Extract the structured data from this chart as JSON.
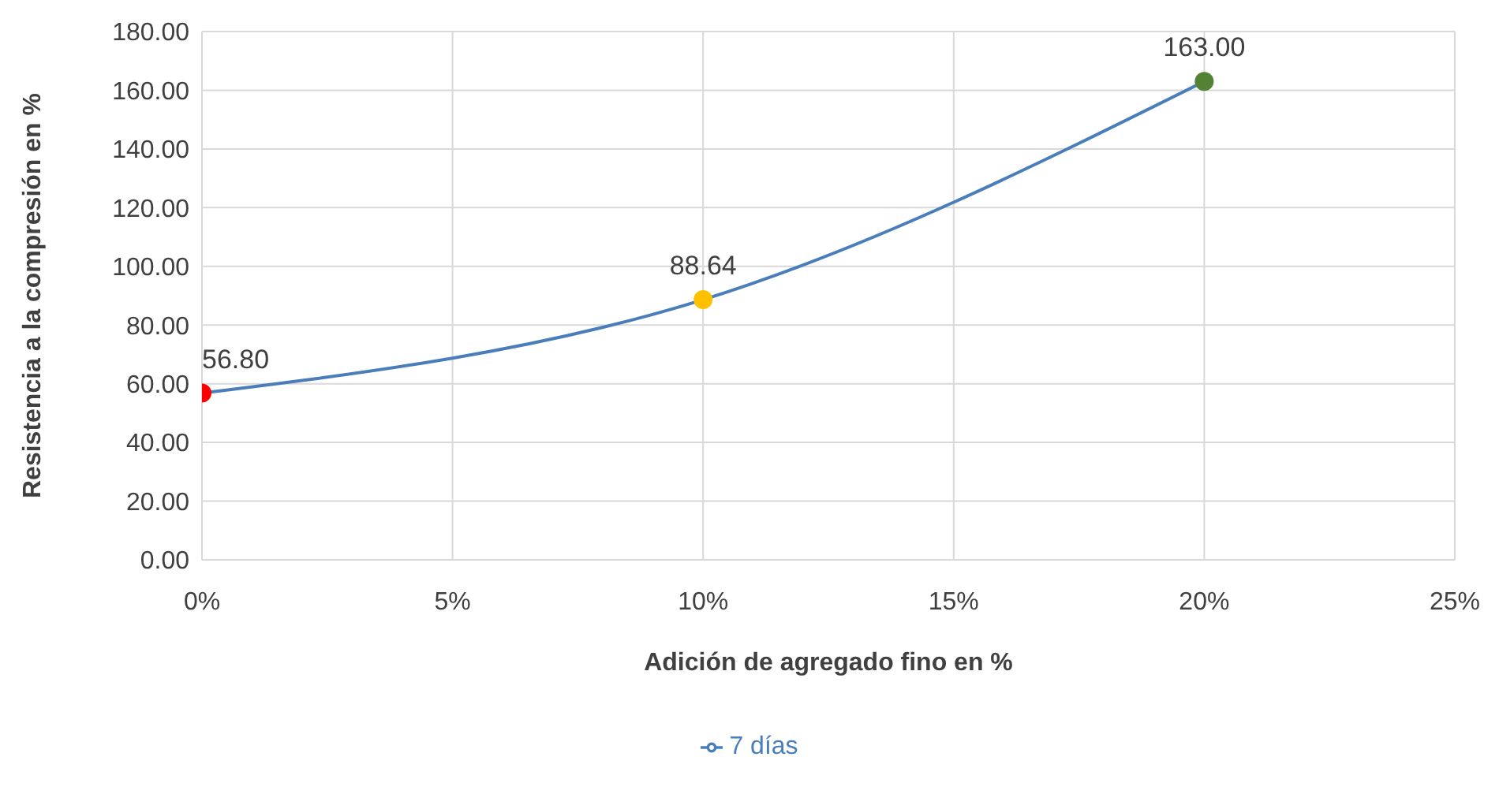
{
  "chart_data": {
    "type": "line",
    "xlabel": "Adición de agregado fino en %",
    "ylabel": "Resistencia a la compresión en %",
    "x": [
      0,
      10,
      20
    ],
    "series": [
      {
        "name": "7 días",
        "color": "#4a7ebb",
        "colors": [
          "#ff0000",
          "#ffc000",
          "#548235"
        ],
        "values": [
          56.8,
          88.64,
          163.0
        ],
        "value_labels": [
          "56.80",
          "88.64",
          "163.00"
        ]
      }
    ],
    "xlim": [
      0,
      25
    ],
    "xticks": [
      {
        "value": 0,
        "label": "0%"
      },
      {
        "value": 5,
        "label": "5%"
      },
      {
        "value": 10,
        "label": "10%"
      },
      {
        "value": 15,
        "label": "15%"
      },
      {
        "value": 20,
        "label": "20%"
      },
      {
        "value": 25,
        "label": "25%"
      }
    ],
    "ylim": [
      0,
      180
    ],
    "yticks": [
      {
        "value": 0,
        "label": "0.00"
      },
      {
        "value": 20,
        "label": "20.00"
      },
      {
        "value": 40,
        "label": "40.00"
      },
      {
        "value": 60,
        "label": "60.00"
      },
      {
        "value": 80,
        "label": "80.00"
      },
      {
        "value": 100,
        "label": "100.00"
      },
      {
        "value": 120,
        "label": "120.00"
      },
      {
        "value": 140,
        "label": "140.00"
      },
      {
        "value": 160,
        "label": "160.00"
      },
      {
        "value": 180,
        "label": "180.00"
      }
    ],
    "grid": true,
    "legend": "bottom",
    "marker": "circle"
  }
}
